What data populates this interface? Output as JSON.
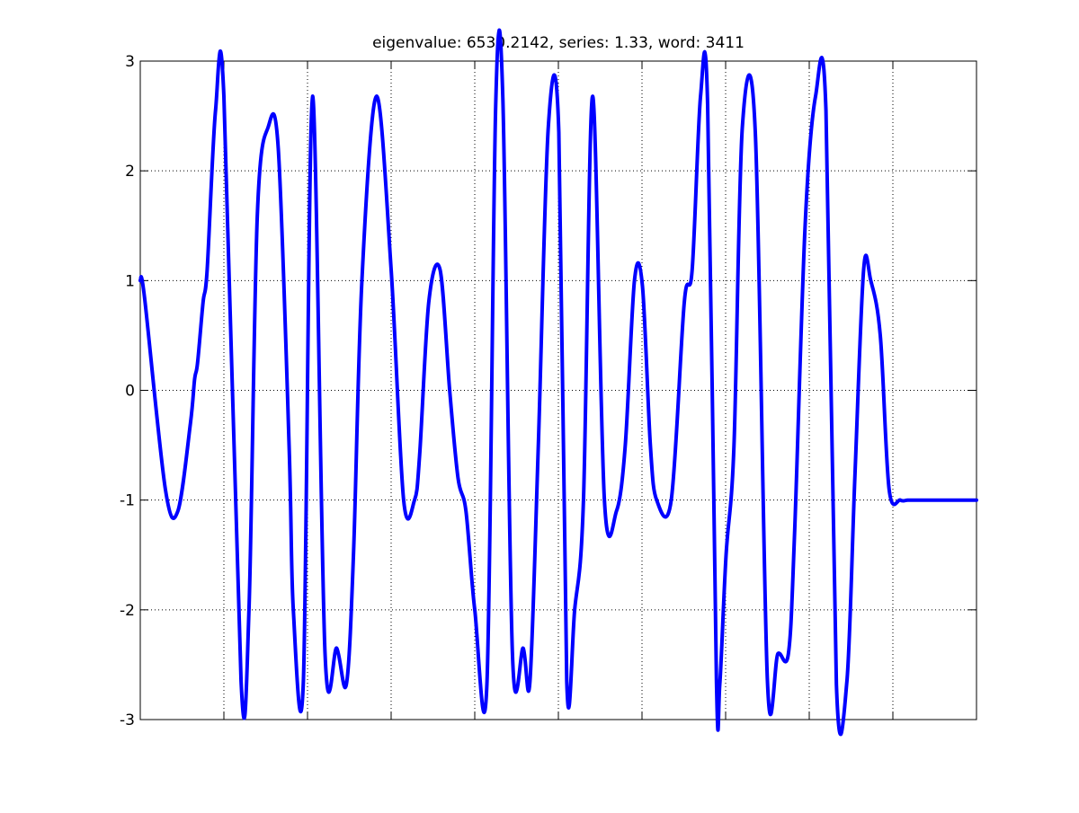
{
  "chart_data": {
    "type": "line",
    "title": "eigenvalue: 6530.2142, series: 1.33, word: 3411",
    "xlabel": "",
    "ylabel": "",
    "xlim": [
      0,
      1
    ],
    "ylim": [
      -3,
      3
    ],
    "yticks": [
      -3,
      -2,
      -1,
      0,
      1,
      2,
      3
    ],
    "ytick_labels": [
      "-3",
      "-2",
      "-1",
      "0",
      "1",
      "2",
      "3"
    ],
    "xticks": [
      0.1,
      0.2,
      0.3,
      0.4,
      0.5,
      0.6,
      0.7,
      0.8,
      0.9
    ],
    "xtick_labels": [],
    "grid": true,
    "colors": {
      "line": "#0000ff",
      "grid": "#000000",
      "axes": "#000000"
    },
    "series": [
      {
        "x": [
          0,
          0.005,
          0.03,
          0.045,
          0.06,
          0.065,
          0.0685,
          0.075,
          0.08,
          0.09,
          0.1,
          0.1205,
          0.13,
          0.14,
          0.153,
          0.165,
          0.178,
          0.183,
          0.195,
          0.206,
          0.221,
          0.235,
          0.2465,
          0.255,
          0.265,
          0.2825,
          0.3,
          0.315,
          0.328,
          0.334,
          0.345,
          0.3585,
          0.37,
          0.38,
          0.3895,
          0.4,
          0.4145,
          0.425,
          0.4335,
          0.445,
          0.458,
          0.466,
          0.476,
          0.488,
          0.5005,
          0.51,
          0.5195,
          0.53,
          0.541,
          0.555,
          0.5695,
          0.58,
          0.591,
          0.6005,
          0.61,
          0.6175,
          0.635,
          0.6505,
          0.66,
          0.67,
          0.6785,
          0.689,
          0.693,
          0.7005,
          0.71,
          0.72,
          0.7355,
          0.75,
          0.7625,
          0.775,
          0.7825,
          0.795,
          0.8075,
          0.82,
          0.8325,
          0.845,
          0.8545,
          0.865,
          0.8735,
          0.885,
          0.8955,
          0.909,
          0.9175,
          0.925,
          0.93,
          0.945,
          0.9535,
          0.965,
          0.9745,
          0.9905,
          1.0
        ],
        "y": [
          1.0,
          0.85,
          -0.9,
          -1.1,
          -0.3,
          0.1,
          0.25,
          0.8,
          1.1,
          2.55,
          2.68,
          -2.65,
          -2.0,
          1.6,
          2.4,
          2.2,
          -0.5,
          -2.0,
          -2.65,
          2.68,
          -2.4,
          -2.35,
          -2.68,
          -1.5,
          1.0,
          2.68,
          1.1,
          -1.0,
          -1.0,
          -0.6,
          0.8,
          1.1,
          0.0,
          -0.8,
          -1.1,
          -2.0,
          -2.68,
          2.6,
          2.67,
          -2.4,
          -2.35,
          -2.65,
          -0.5,
          2.4,
          2.35,
          -2.65,
          -2.0,
          -1.0,
          2.68,
          -1.0,
          -1.1,
          -0.5,
          1.0,
          0.95,
          -0.5,
          -1.0,
          -1.0,
          0.8,
          1.1,
          2.68,
          2.6,
          -2.65,
          -2.68,
          -1.5,
          -0.5,
          2.4,
          2.35,
          -2.65,
          -2.4,
          -2.4,
          -1.3,
          1.5,
          2.68,
          2.55,
          -2.68,
          -2.65,
          -0.8,
          1.1,
          1.0,
          0.5,
          -0.9,
          -1.0,
          -1.0,
          -1.0,
          -1.0,
          -1.0,
          -1.0,
          -1.0,
          -1.0,
          -1.0,
          -1.0
        ]
      }
    ]
  }
}
